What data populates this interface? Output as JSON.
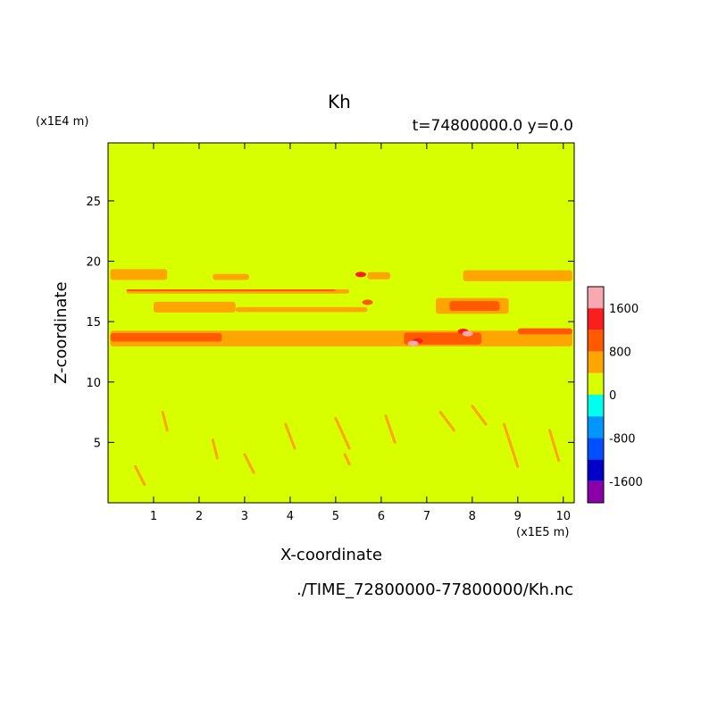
{
  "chart_data": {
    "type": "heatmap",
    "title": "Kh",
    "subtitle": "t=74800000.0 y=0.0",
    "xlabel": "X-coordinate",
    "ylabel": "Z-coordinate",
    "x_unit": "(x1E5 m)",
    "y_unit": "(x1E4 m)",
    "xlim": [
      0,
      10.24
    ],
    "ylim": [
      0,
      29.8
    ],
    "x_ticks": [
      1,
      2,
      3,
      4,
      5,
      6,
      7,
      8,
      9,
      10
    ],
    "y_ticks": [
      5,
      10,
      15,
      20,
      25
    ],
    "background_level": 0,
    "colorbar": {
      "labels": [
        1600,
        800,
        0,
        -800,
        -1600
      ],
      "levels": [
        {
          "min": 1600,
          "max": 2000,
          "color": "#f8a8b0"
        },
        {
          "min": 1200,
          "max": 1600,
          "color": "#fa1e1e"
        },
        {
          "min": 800,
          "max": 1200,
          "color": "#ff5a00"
        },
        {
          "min": 400,
          "max": 800,
          "color": "#ffa500"
        },
        {
          "min": 0,
          "max": 400,
          "color": "#d7ff00"
        },
        {
          "min": -400,
          "max": 0,
          "color": "#00ffee"
        },
        {
          "min": -800,
          "max": -400,
          "color": "#0096ff"
        },
        {
          "min": -1200,
          "max": -800,
          "color": "#0050ff"
        },
        {
          "min": -1600,
          "max": -1200,
          "color": "#0000c8"
        },
        {
          "min": -2000,
          "max": -1600,
          "color": "#8c00aa"
        }
      ]
    }
  },
  "footer": "./TIME_72800000-77800000/Kh.nc"
}
